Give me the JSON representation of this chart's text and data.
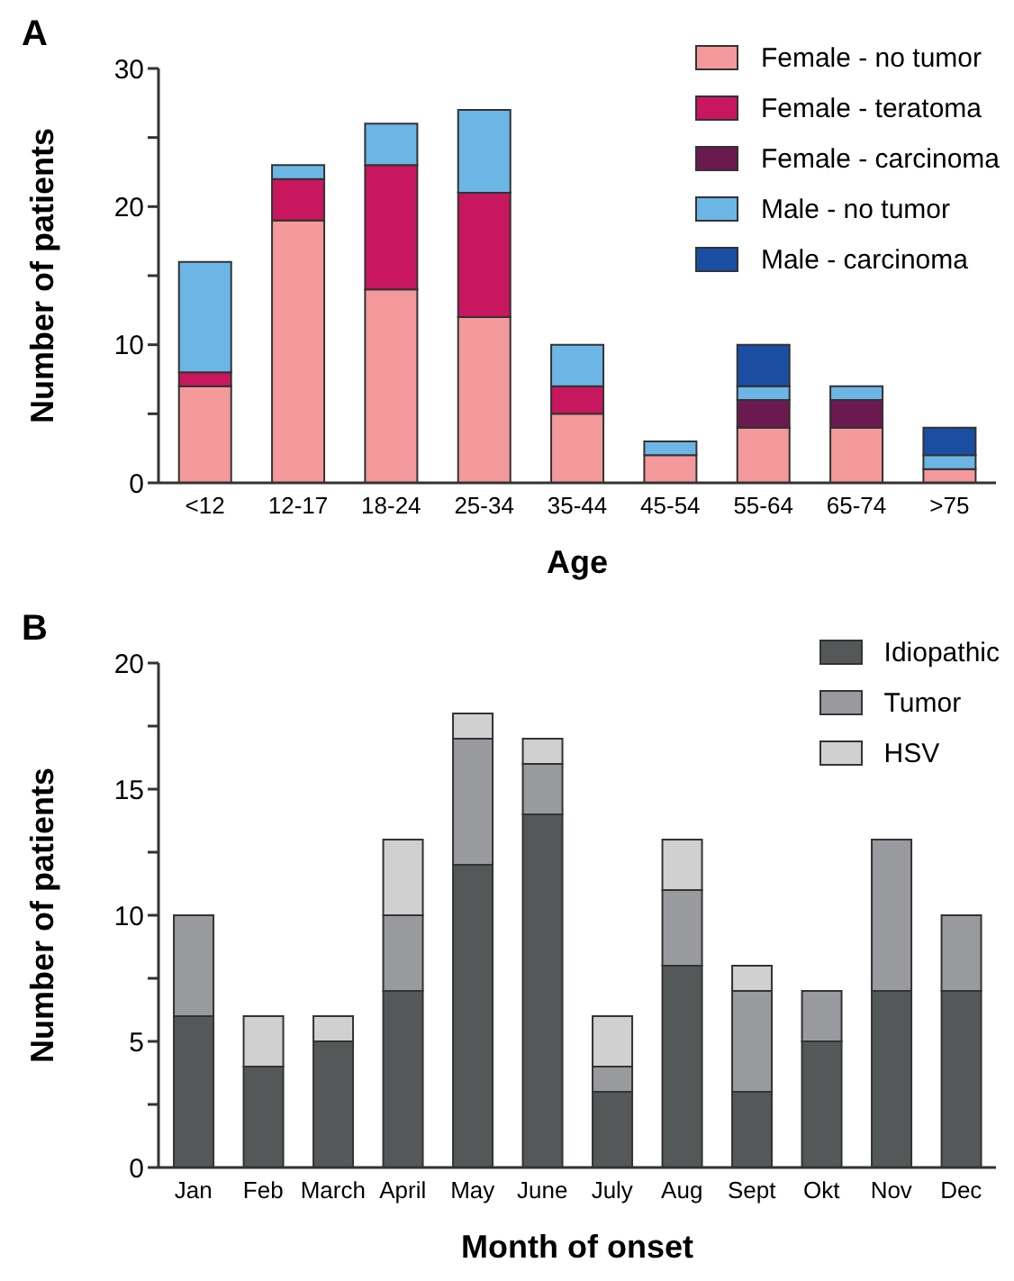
{
  "chart_data": [
    {
      "type": "bar",
      "title": "A",
      "stacked": true,
      "xlabel": "Age",
      "ylabel": "Number of patients",
      "categories": [
        "<12",
        "12-17",
        "18-24",
        "25-34",
        "35-44",
        "45-54",
        "55-64",
        "65-74",
        ">75"
      ],
      "series": [
        {
          "name": "Female - no tumor",
          "color": "#f4999b",
          "values": [
            7,
            19,
            14,
            12,
            5,
            2,
            4,
            4,
            1
          ]
        },
        {
          "name": "Female - teratoma",
          "color": "#c8175f",
          "values": [
            1,
            3,
            9,
            9,
            2,
            0,
            0,
            0,
            0
          ]
        },
        {
          "name": "Female - carcinoma",
          "color": "#6a1a4f",
          "values": [
            0,
            0,
            0,
            0,
            0,
            0,
            2,
            2,
            0
          ]
        },
        {
          "name": "Male - no tumor",
          "color": "#6cb6e6",
          "values": [
            8,
            1,
            3,
            6,
            3,
            1,
            1,
            1,
            1
          ]
        },
        {
          "name": "Male - carcinoma",
          "color": "#1a4ea3",
          "values": [
            0,
            0,
            0,
            0,
            0,
            0,
            3,
            0,
            2
          ]
        }
      ],
      "ylim": [
        0,
        30
      ],
      "yticks": [
        0,
        {
          "value": 5,
          "label": null
        },
        10,
        {
          "value": 15,
          "label": null
        },
        20,
        {
          "value": 25,
          "label": null
        },
        30
      ],
      "grid": false,
      "legend": "top right"
    },
    {
      "type": "bar",
      "title": "B",
      "stacked": true,
      "xlabel": "Month of onset",
      "ylabel": "Number of patients",
      "categories": [
        "Jan",
        "Feb",
        "March",
        "April",
        "May",
        "June",
        "July",
        "Aug",
        "Sept",
        "Okt",
        "Nov",
        "Dec"
      ],
      "series": [
        {
          "name": "Idiopathic",
          "color": "#555859",
          "values": [
            6,
            4,
            5,
            7,
            12,
            14,
            3,
            8,
            3,
            5,
            7,
            7
          ]
        },
        {
          "name": "Tumor",
          "color": "#999a9e",
          "values": [
            4,
            0,
            0,
            3,
            5,
            2,
            1,
            3,
            4,
            2,
            6,
            3
          ]
        },
        {
          "name": "HSV",
          "color": "#d0d0d0",
          "values": [
            0,
            2,
            1,
            3,
            1,
            1,
            2,
            2,
            1,
            0,
            0,
            0
          ]
        }
      ],
      "ylim": [
        0,
        20
      ],
      "yticks": [
        0,
        {
          "value": 2.5,
          "label": null
        },
        5,
        {
          "value": 7.5,
          "label": null
        },
        10,
        {
          "value": 12.5,
          "label": null
        },
        15,
        {
          "value": 17.5,
          "label": null
        },
        20
      ],
      "grid": false,
      "legend": "top right"
    }
  ]
}
